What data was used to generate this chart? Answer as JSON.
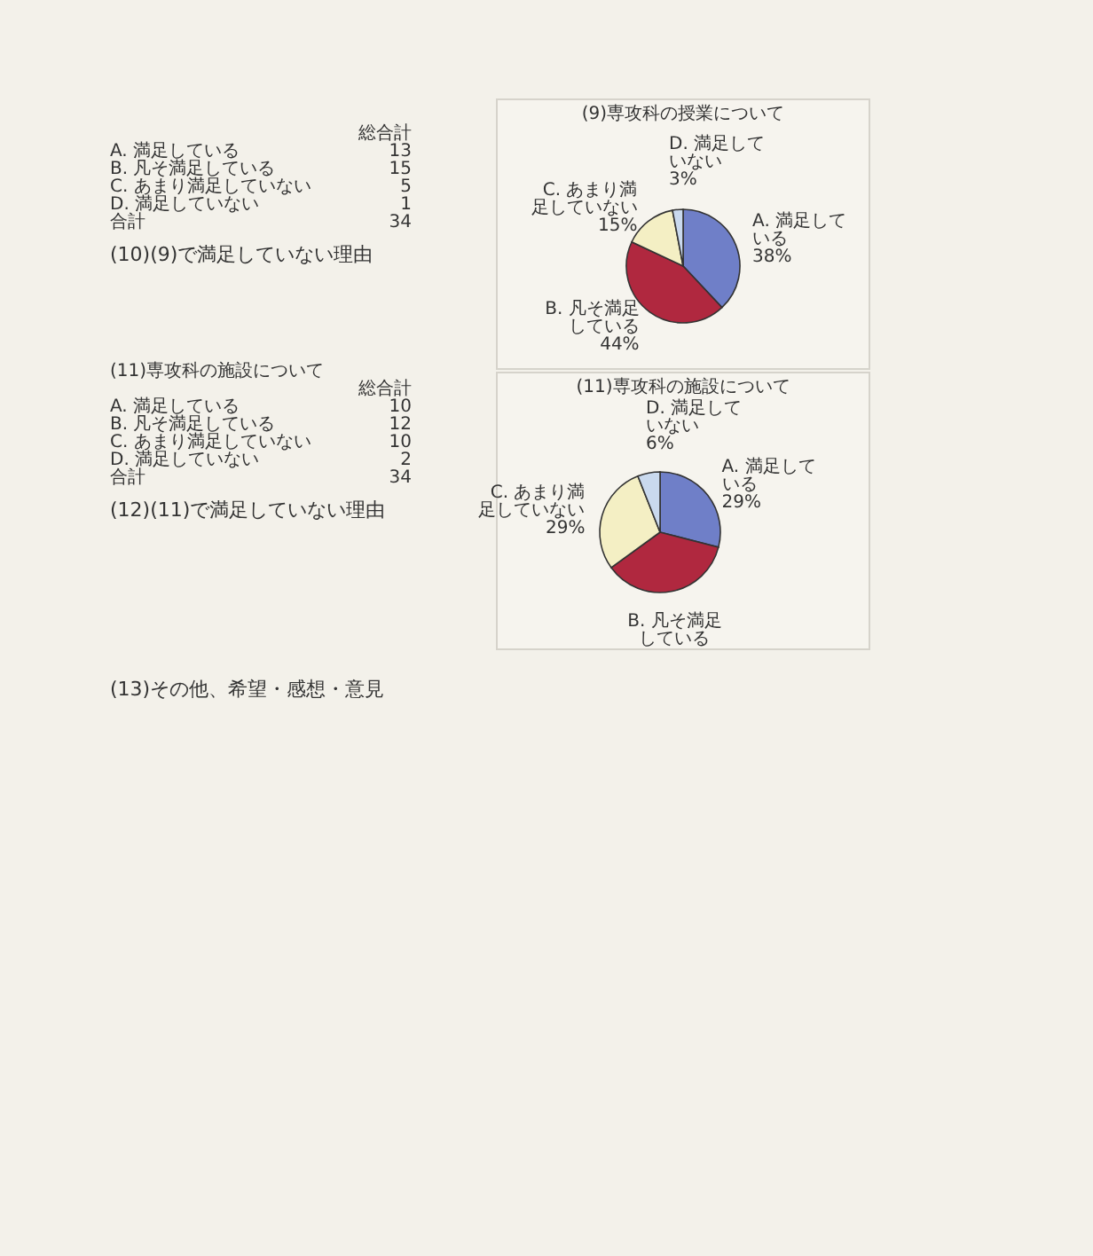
{
  "chart_data": [
    {
      "type": "pie",
      "title": "(9)専攻科の授業について",
      "categories": [
        "A. 満足している",
        "B. 凡そ満足している",
        "C. あまり満足していない",
        "D. 満足していない"
      ],
      "values": [
        38,
        44,
        15,
        3
      ],
      "value_labels": [
        "38%",
        "44%",
        "15%",
        "3%"
      ],
      "colors": [
        "#6f7fc8",
        "#b0283f",
        "#f4efc4",
        "#c9d9ee"
      ],
      "annotations": [
        "総合計",
        "13",
        "15",
        "5",
        "1",
        "合計",
        "34",
        "(10)(9)で満足していない理由"
      ]
    },
    {
      "type": "pie",
      "title": "(11)専攻科の施設について",
      "subtitle": "(11)専攻科の施設について",
      "categories": [
        "A. 満足している",
        "B. 凡そ満足している",
        "C. あまり満足していない",
        "D. 満足していない"
      ],
      "values": [
        29,
        36,
        29,
        6
      ],
      "value_labels": [
        "29%",
        null,
        "29%",
        "6%"
      ],
      "colors": [
        "#6f7fc8",
        "#b0283f",
        "#f4efc4",
        "#c9d9ee"
      ],
      "annotations": [
        "総合計",
        "10",
        "12",
        "10",
        "2",
        "合計",
        "34",
        "(12)(11)で満足していない理由"
      ]
    },
    {
      "type": "other",
      "title": "(13)その他、希望・感想・意見"
    }
  ]
}
